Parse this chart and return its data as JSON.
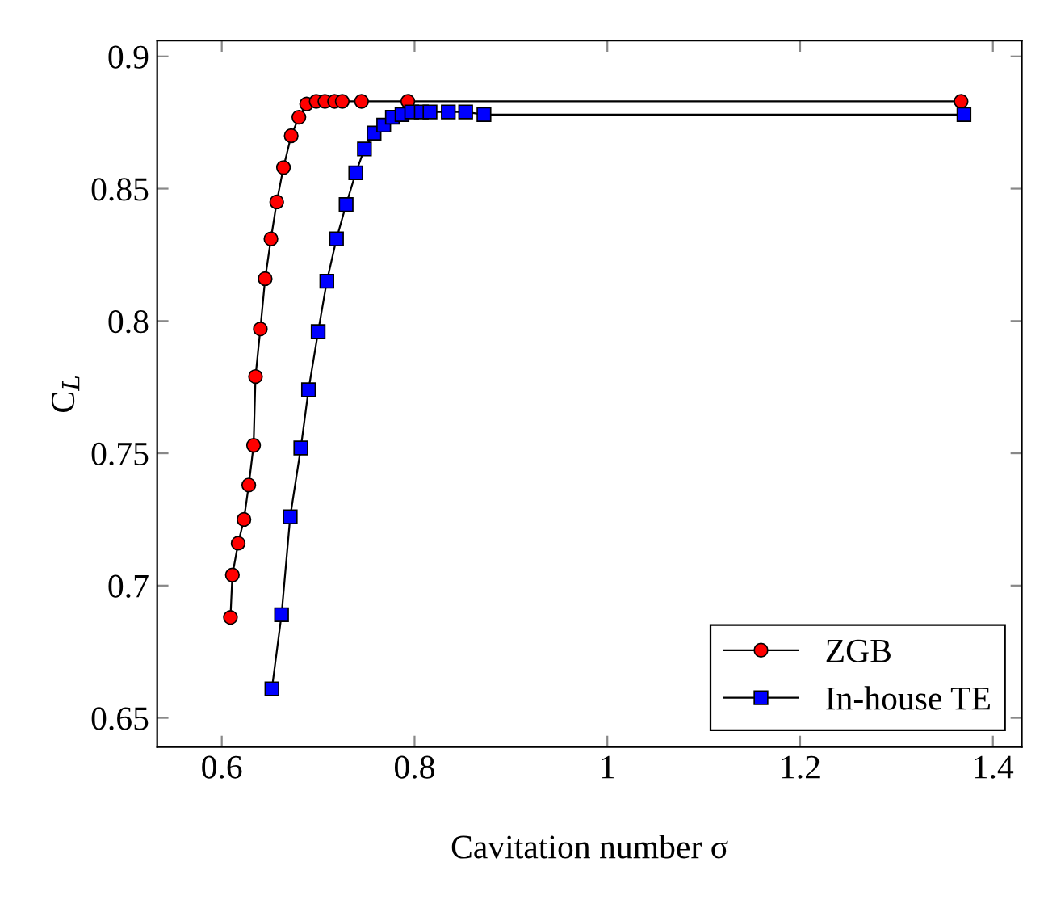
{
  "chart_data": {
    "type": "line",
    "xlabel": "Cavitation number σ",
    "ylabel": "C$_{L}$",
    "xlim": [
      0.533,
      1.43
    ],
    "ylim": [
      0.639,
      0.906
    ],
    "xticks": [
      0.6,
      0.8,
      1,
      1.2,
      1.4
    ],
    "yticks": [
      0.65,
      0.7,
      0.75,
      0.8,
      0.85,
      0.9
    ],
    "grid": false,
    "legend": "bottom right",
    "line_style": "solid",
    "series": [
      {
        "name": "ZGB",
        "color": "#ff0000",
        "marker": "circle",
        "x": [
          0.609,
          0.611,
          0.617,
          0.623,
          0.628,
          0.633,
          0.635,
          0.64,
          0.645,
          0.651,
          0.657,
          0.664,
          0.672,
          0.68,
          0.688,
          0.698,
          0.707,
          0.717,
          0.725,
          0.745,
          0.793,
          1.367
        ],
        "values": [
          0.688,
          0.704,
          0.716,
          0.725,
          0.738,
          0.753,
          0.779,
          0.797,
          0.816,
          0.831,
          0.845,
          0.858,
          0.87,
          0.877,
          0.882,
          0.883,
          0.883,
          0.883,
          0.883,
          0.883,
          0.883,
          0.883
        ]
      },
      {
        "name": "In-house TE",
        "color": "#0000ff",
        "marker": "square",
        "x": [
          0.652,
          0.662,
          0.671,
          0.682,
          0.69,
          0.7,
          0.709,
          0.719,
          0.729,
          0.739,
          0.748,
          0.758,
          0.768,
          0.777,
          0.787,
          0.797,
          0.807,
          0.816,
          0.835,
          0.853,
          0.872,
          1.37
        ],
        "values": [
          0.661,
          0.689,
          0.726,
          0.752,
          0.774,
          0.796,
          0.815,
          0.831,
          0.844,
          0.856,
          0.865,
          0.871,
          0.874,
          0.877,
          0.878,
          0.879,
          0.879,
          0.879,
          0.879,
          0.879,
          0.878,
          0.878
        ]
      }
    ]
  }
}
